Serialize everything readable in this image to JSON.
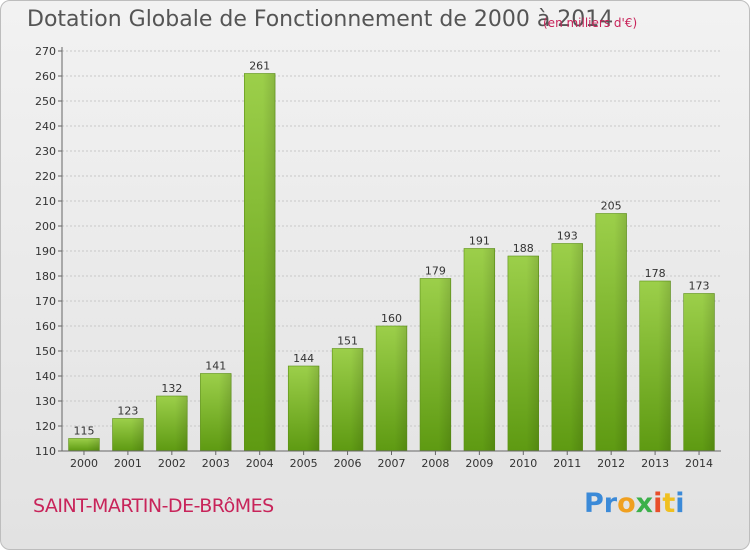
{
  "chart_data": {
    "type": "bar",
    "title": "Dotation Globale de Fonctionnement de 2000 à 2014",
    "unit_note": "(en milliers d'€)",
    "categories": [
      "2000",
      "2001",
      "2002",
      "2003",
      "2004",
      "2005",
      "2006",
      "2007",
      "2008",
      "2009",
      "2010",
      "2011",
      "2012",
      "2013",
      "2014"
    ],
    "values": [
      115,
      123,
      132,
      141,
      261,
      144,
      151,
      160,
      179,
      191,
      188,
      193,
      205,
      178,
      173
    ],
    "ylim": [
      110,
      270
    ],
    "yticks": [
      110,
      120,
      130,
      140,
      150,
      160,
      170,
      180,
      190,
      200,
      210,
      220,
      230,
      240,
      250,
      260,
      270
    ],
    "grid": true,
    "bar_color": "#8cc63f"
  },
  "footer": {
    "commune": "SAINT-MARTIN-DE-BRôMES",
    "logo": [
      "Pr",
      "o",
      "x",
      "i",
      "t",
      "i"
    ]
  }
}
